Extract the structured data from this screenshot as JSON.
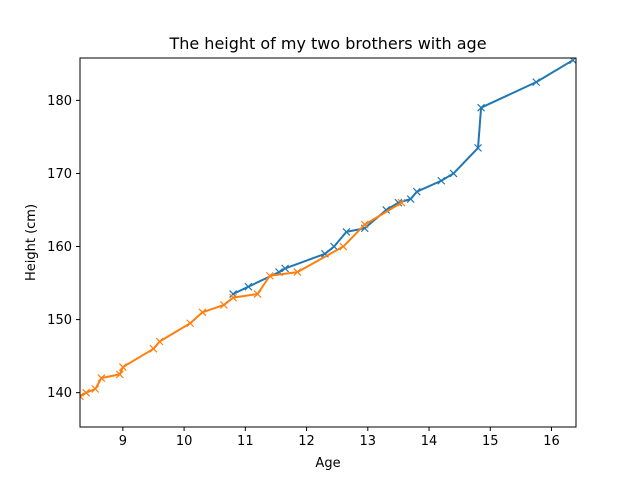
{
  "chart_data": {
    "type": "line",
    "title": "The height of my two brothers with age",
    "xlabel": "Age",
    "ylabel": "Height (cm)",
    "xlim": [
      8.3,
      16.4
    ],
    "ylim": [
      135.3,
      185.8
    ],
    "xticks": [
      9,
      10,
      11,
      12,
      13,
      14,
      15,
      16
    ],
    "yticks": [
      140,
      150,
      160,
      170,
      180
    ],
    "grid": false,
    "marker": "x",
    "series": [
      {
        "color": "#1f77b4",
        "x": [
          10.8,
          11.05,
          11.55,
          11.65,
          12.3,
          12.45,
          12.65,
          12.95,
          13.3,
          13.5,
          13.7,
          13.8,
          14.2,
          14.4,
          14.8,
          14.85,
          15.75,
          16.35
        ],
        "y": [
          153.5,
          154.5,
          156.5,
          157.0,
          159.0,
          160.0,
          162.0,
          162.5,
          165.0,
          166.0,
          166.5,
          167.5,
          169.0,
          170.0,
          173.5,
          179.0,
          182.5,
          185.5
        ]
      },
      {
        "color": "#ff7f0e",
        "x": [
          8.3,
          8.4,
          8.55,
          8.65,
          8.95,
          9.0,
          9.5,
          9.6,
          10.1,
          10.3,
          10.65,
          10.8,
          11.2,
          11.4,
          11.85,
          12.6,
          12.95,
          13.55
        ],
        "y": [
          139.5,
          140.0,
          140.5,
          142.0,
          142.5,
          143.5,
          146.0,
          147.0,
          149.5,
          151.0,
          152.0,
          153.0,
          153.5,
          156.0,
          156.5,
          160.0,
          163.0,
          166.0
        ]
      }
    ]
  }
}
